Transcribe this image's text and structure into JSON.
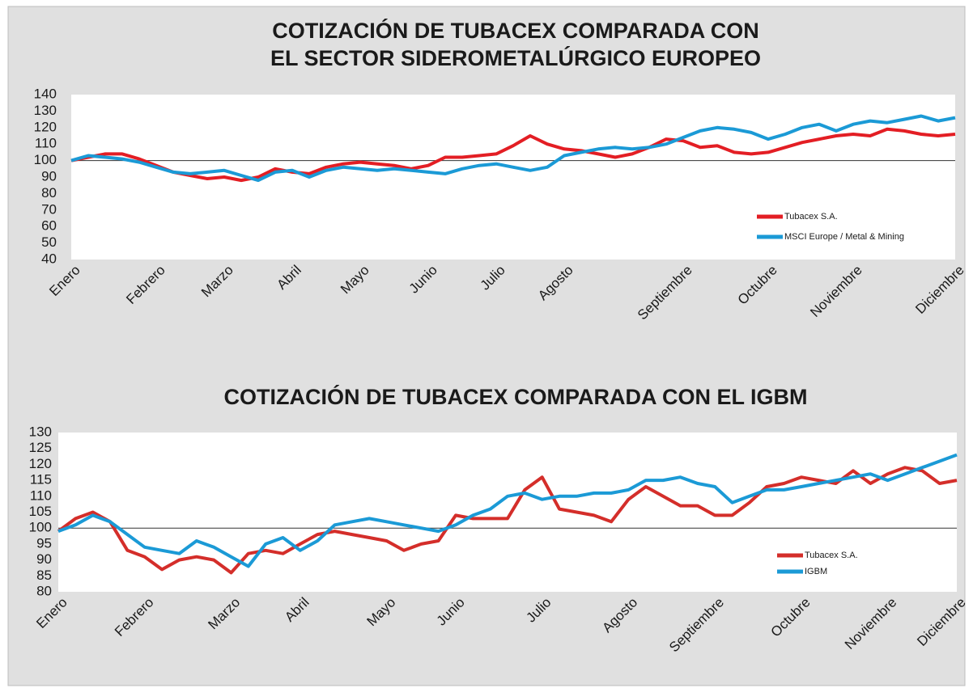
{
  "chart_data": [
    {
      "type": "line",
      "title": [
        "COTIZACIÓN DE TUBACEX COMPARADA CON",
        "EL SECTOR SIDEROMETALÚRGICO EUROPEO"
      ],
      "categories": [
        "Enero",
        null,
        null,
        null,
        null,
        "Febrero",
        null,
        null,
        null,
        "Marzo",
        null,
        null,
        null,
        "Abril",
        null,
        null,
        null,
        "Mayo",
        null,
        null,
        null,
        "Junio",
        null,
        null,
        null,
        "Julio",
        null,
        null,
        null,
        "Agosto",
        null,
        null,
        null,
        null,
        null,
        null,
        "Septiembre",
        null,
        null,
        null,
        null,
        "Octubre",
        null,
        null,
        null,
        null,
        "Noviembre",
        null,
        null,
        null,
        null,
        null,
        "Diciembre"
      ],
      "series": [
        {
          "name": "Tubacex S.A.",
          "color": "#e31e24",
          "values": [
            100,
            102,
            104,
            104,
            101,
            97,
            93,
            91,
            89,
            90,
            88,
            90,
            95,
            93,
            92,
            96,
            98,
            99,
            98,
            97,
            95,
            97,
            102,
            102,
            103,
            104,
            109,
            115,
            110,
            107,
            106,
            104,
            102,
            104,
            108,
            113,
            112,
            108,
            109,
            105,
            104,
            105,
            108,
            111,
            113,
            115,
            116,
            115,
            119,
            118,
            116,
            115,
            116
          ]
        },
        {
          "name": "MSCI Europe / Metal & Mining",
          "color": "#1b9ad6",
          "values": [
            100,
            103,
            102,
            101,
            99,
            96,
            93,
            92,
            93,
            94,
            91,
            88,
            93,
            94,
            90,
            94,
            96,
            95,
            94,
            95,
            94,
            93,
            92,
            95,
            97,
            98,
            96,
            94,
            96,
            103,
            105,
            107,
            108,
            107,
            108,
            110,
            114,
            118,
            120,
            119,
            117,
            113,
            116,
            120,
            122,
            118,
            122,
            124,
            123,
            125,
            127,
            124,
            126
          ]
        }
      ],
      "ylim": [
        40,
        140
      ],
      "yticks": [
        40,
        50,
        60,
        70,
        80,
        90,
        100,
        110,
        120,
        130,
        140
      ],
      "hline": 100,
      "legend": "lower right"
    },
    {
      "type": "line",
      "title": [
        "COTIZACIÓN DE TUBACEX COMPARADA CON EL IGBM"
      ],
      "categories": [
        "Enero",
        null,
        null,
        null,
        null,
        "Febrero",
        null,
        null,
        null,
        null,
        "Marzo",
        null,
        null,
        null,
        "Abril",
        null,
        null,
        null,
        null,
        "Mayo",
        null,
        null,
        null,
        "Junio",
        null,
        null,
        null,
        null,
        "Julio",
        null,
        null,
        null,
        null,
        "Agosto",
        null,
        null,
        null,
        null,
        "Septiembre",
        null,
        null,
        null,
        null,
        "Octubre",
        null,
        null,
        null,
        null,
        "Noviembre",
        null,
        null,
        null,
        "Diciembre"
      ],
      "series": [
        {
          "name": "Tubacex S.A.",
          "color": "#d42e2a",
          "values": [
            99,
            103,
            105,
            102,
            93,
            91,
            87,
            90,
            91,
            90,
            86,
            92,
            93,
            92,
            95,
            98,
            99,
            98,
            97,
            96,
            93,
            95,
            96,
            104,
            103,
            103,
            103,
            112,
            116,
            106,
            105,
            104,
            102,
            109,
            113,
            110,
            107,
            107,
            104,
            104,
            108,
            113,
            114,
            116,
            115,
            114,
            118,
            114,
            117,
            119,
            118,
            114,
            115
          ]
        },
        {
          "name": "IGBM",
          "color": "#1b9ad6",
          "values": [
            99,
            101,
            104,
            102,
            98,
            94,
            93,
            92,
            96,
            94,
            91,
            88,
            95,
            97,
            93,
            96,
            101,
            102,
            103,
            102,
            101,
            100,
            99,
            101,
            104,
            106,
            110,
            111,
            109,
            110,
            110,
            111,
            111,
            112,
            115,
            115,
            116,
            114,
            113,
            108,
            110,
            112,
            112,
            113,
            114,
            115,
            116,
            117,
            115,
            117,
            119,
            121,
            123
          ]
        }
      ],
      "ylim": [
        80,
        130
      ],
      "yticks": [
        80,
        85,
        90,
        95,
        100,
        105,
        110,
        115,
        120,
        125,
        130
      ],
      "hline": 100,
      "legend": "lower right"
    }
  ]
}
